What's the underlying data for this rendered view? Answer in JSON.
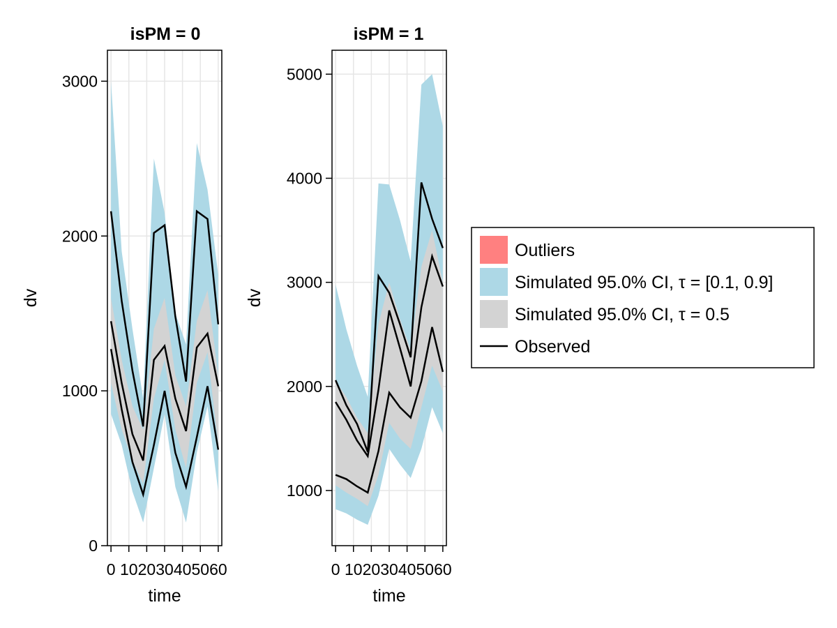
{
  "chart_data": {
    "type": "area",
    "figure_ylabel": "dv",
    "figure_xlabel": "time",
    "colors": {
      "outer_band": "#add8e6",
      "median_band": "#d3d3d3",
      "outliers": "#ff8080",
      "observed": "#000000",
      "grid": "#e6e6e6"
    },
    "legend": {
      "position": "right",
      "entries": [
        {
          "label": "Outliers",
          "kind": "patch",
          "color": "#ff8080"
        },
        {
          "label": "Simulated 95.0% CI, τ = [0.1, 0.9]",
          "kind": "patch",
          "color": "#add8e6"
        },
        {
          "label": "Simulated 95.0% CI, τ = 0.5",
          "kind": "patch",
          "color": "#d3d3d3"
        },
        {
          "label": "Observed",
          "kind": "line",
          "color": "#000000"
        }
      ]
    },
    "panels": [
      {
        "title": "isPM = 0",
        "xlabel": "time",
        "ylabel": "dv",
        "xlim": [
          -2,
          62
        ],
        "ylim": [
          0,
          3200
        ],
        "xticks": [
          0,
          10,
          20,
          30,
          40,
          50,
          60
        ],
        "yticks": [
          0,
          1000,
          2000,
          3000
        ],
        "x": [
          0,
          6,
          12,
          18,
          24,
          30,
          36,
          42,
          48,
          54,
          60
        ],
        "outer_band": {
          "upper": [
            3000,
            1900,
            1400,
            950,
            2500,
            2150,
            1500,
            1300,
            2600,
            2300,
            1750
          ],
          "lower": [
            850,
            650,
            350,
            150,
            500,
            850,
            380,
            150,
            600,
            900,
            350
          ]
        },
        "median_band": {
          "upper": [
            1600,
            1200,
            900,
            750,
            1400,
            1600,
            1100,
            900,
            1450,
            1650,
            1100
          ],
          "lower": [
            1050,
            750,
            550,
            400,
            950,
            1200,
            750,
            500,
            1050,
            1250,
            650
          ]
        },
        "observed": [
          [
            1270,
            880,
            540,
            330,
            650,
            1000,
            600,
            380,
            700,
            1030,
            620
          ],
          [
            1450,
            1050,
            720,
            550,
            1200,
            1290,
            950,
            740,
            1280,
            1370,
            1030
          ],
          [
            2160,
            1580,
            1130,
            770,
            2020,
            2070,
            1480,
            1060,
            2160,
            2110,
            1430
          ]
        ]
      },
      {
        "title": "isPM = 1",
        "xlabel": "time",
        "ylabel": "dv",
        "xlim": [
          -2,
          62
        ],
        "ylim": [
          470,
          5230
        ],
        "xticks": [
          0,
          10,
          20,
          30,
          40,
          50,
          60
        ],
        "yticks": [
          1000,
          2000,
          3000,
          4000,
          5000
        ],
        "x": [
          0,
          6,
          12,
          18,
          24,
          30,
          36,
          42,
          48,
          54,
          60
        ],
        "outer_band": {
          "upper": [
            2980,
            2550,
            2200,
            1900,
            3950,
            3940,
            3600,
            3200,
            4900,
            5000,
            4500
          ],
          "lower": [
            820,
            780,
            720,
            670,
            950,
            1400,
            1250,
            1120,
            1400,
            1800,
            1550
          ]
        },
        "median_band": {
          "upper": [
            2050,
            1900,
            1700,
            1550,
            2600,
            3000,
            2650,
            2350,
            3150,
            3500,
            3000
          ],
          "lower": [
            1050,
            980,
            920,
            850,
            1150,
            1650,
            1500,
            1400,
            1800,
            2200,
            1950
          ]
        },
        "observed": [
          [
            1150,
            1110,
            1040,
            980,
            1380,
            1940,
            1800,
            1700,
            2050,
            2570,
            2140
          ],
          [
            1850,
            1680,
            1480,
            1330,
            1970,
            2730,
            2370,
            2000,
            2760,
            3250,
            2960
          ],
          [
            2060,
            1820,
            1640,
            1370,
            3060,
            2900,
            2600,
            2280,
            3960,
            3610,
            3330
          ]
        ]
      }
    ]
  }
}
